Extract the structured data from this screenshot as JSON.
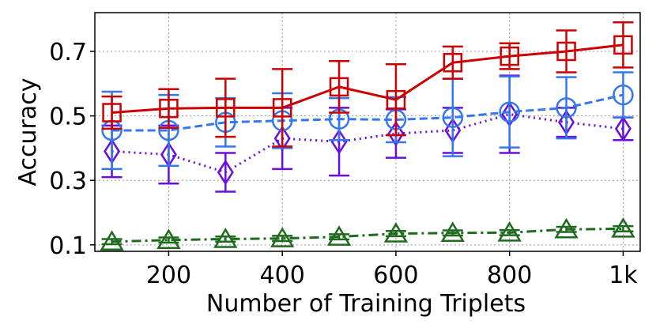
{
  "chart_data": {
    "type": "line",
    "xlabel": "Number of Training Triplets",
    "ylabel": "Accuracy",
    "xlim": [
      70,
      1030
    ],
    "ylim": [
      0.08,
      0.82
    ],
    "x": [
      100,
      200,
      300,
      400,
      500,
      600,
      700,
      800,
      900,
      1000
    ],
    "x_ticks": [
      200,
      400,
      600,
      800,
      1000
    ],
    "x_tick_labels": [
      "200",
      "400",
      "600",
      "800",
      "1k"
    ],
    "y_ticks": [
      0.1,
      0.3,
      0.5,
      0.7
    ],
    "y_tick_labels": [
      "0.1",
      "0.3",
      "0.5",
      "0.7"
    ],
    "grid": true,
    "series": [
      {
        "marker": "square",
        "color": "#cc0000",
        "line_style": "solid",
        "values": [
          0.51,
          0.523,
          0.525,
          0.525,
          0.59,
          0.55,
          0.665,
          0.685,
          0.7,
          0.72
        ],
        "error": [
          0.05,
          0.06,
          0.09,
          0.12,
          0.08,
          0.11,
          0.05,
          0.04,
          0.065,
          0.07
        ]
      },
      {
        "marker": "circle",
        "color": "#3377ee",
        "line_style": "dashed",
        "values": [
          0.455,
          0.455,
          0.48,
          0.485,
          0.49,
          0.488,
          0.495,
          0.512,
          0.525,
          0.565
        ],
        "error": [
          0.12,
          0.11,
          0.075,
          0.085,
          0.065,
          0.07,
          0.12,
          0.11,
          0.095,
          0.07
        ]
      },
      {
        "marker": "diamond",
        "color": "#6a0ddd",
        "line_style": "dotted",
        "values": [
          0.39,
          0.38,
          0.325,
          0.43,
          0.42,
          0.445,
          0.455,
          0.505,
          0.48,
          0.46
        ],
        "error": [
          0.08,
          0.09,
          0.06,
          0.095,
          0.105,
          0.075,
          0.07,
          0.12,
          0.045,
          0.035
        ]
      },
      {
        "marker": "triangle",
        "color": "#1e6b1e",
        "line_style": "dashdot",
        "values": [
          0.11,
          0.115,
          0.118,
          0.12,
          0.125,
          0.135,
          0.137,
          0.138,
          0.148,
          0.15
        ],
        "error": [
          0.008,
          0.008,
          0.008,
          0.008,
          0.008,
          0.008,
          0.008,
          0.008,
          0.008,
          0.008
        ]
      }
    ]
  }
}
